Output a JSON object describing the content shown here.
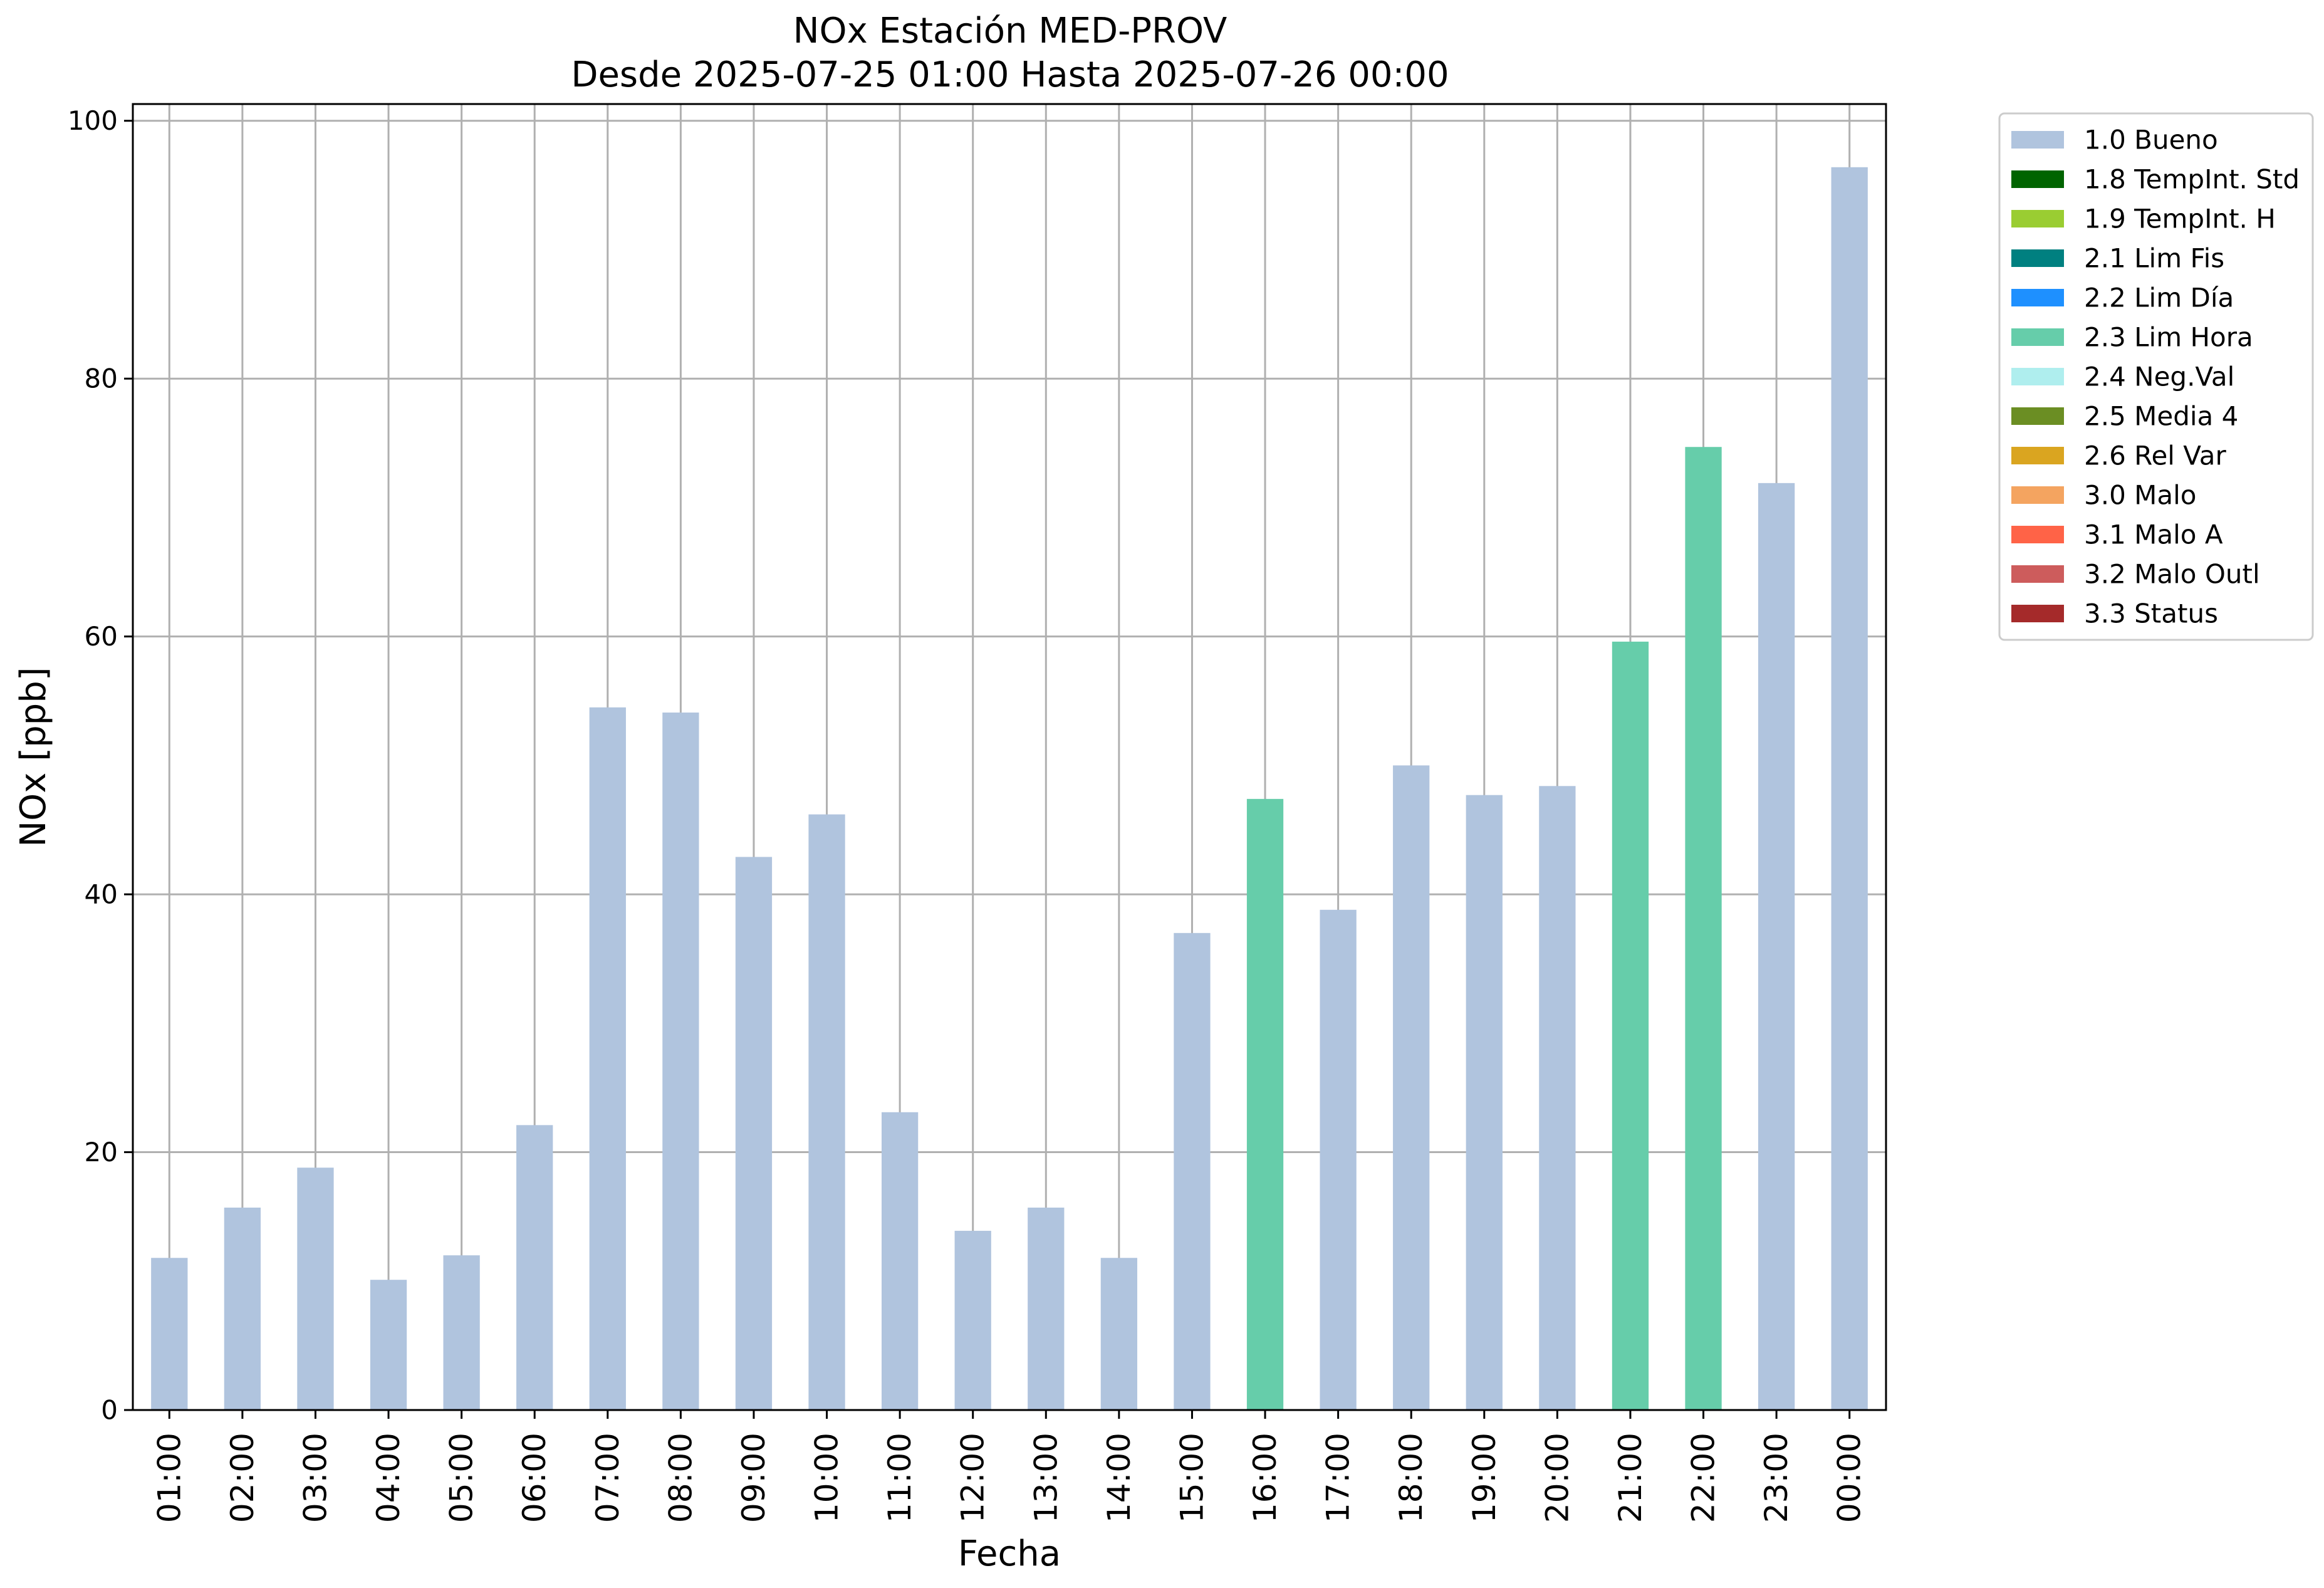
{
  "chart_data": {
    "type": "bar",
    "title": "NOx Estación MED-PROV",
    "subtitle": "Desde 2025-07-25 01:00 Hasta 2025-07-26 00:00",
    "xlabel": "Fecha",
    "ylabel": "NOx [ppb]",
    "ylim": [
      0,
      101.3
    ],
    "yticks": [
      0,
      20,
      40,
      60,
      80,
      100
    ],
    "grid": true,
    "legend_position": "outside-top-right",
    "categories": [
      "01:00",
      "02:00",
      "03:00",
      "04:00",
      "05:00",
      "06:00",
      "07:00",
      "08:00",
      "09:00",
      "10:00",
      "11:00",
      "12:00",
      "13:00",
      "14:00",
      "15:00",
      "16:00",
      "17:00",
      "18:00",
      "19:00",
      "20:00",
      "21:00",
      "22:00",
      "23:00",
      "00:00"
    ],
    "values": [
      11.8,
      15.7,
      18.8,
      10.1,
      12.0,
      22.1,
      54.5,
      54.1,
      42.9,
      46.2,
      23.1,
      13.9,
      15.7,
      11.8,
      37.0,
      47.4,
      38.8,
      50.0,
      47.7,
      48.4,
      59.6,
      74.7,
      71.9,
      96.4
    ],
    "flags": [
      "1.0 Bueno",
      "1.0 Bueno",
      "1.0 Bueno",
      "1.0 Bueno",
      "1.0 Bueno",
      "1.0 Bueno",
      "1.0 Bueno",
      "1.0 Bueno",
      "1.0 Bueno",
      "1.0 Bueno",
      "1.0 Bueno",
      "1.0 Bueno",
      "1.0 Bueno",
      "1.0 Bueno",
      "1.0 Bueno",
      "2.3 Lim Hora",
      "1.0 Bueno",
      "1.0 Bueno",
      "1.0 Bueno",
      "1.0 Bueno",
      "2.3 Lim Hora",
      "2.3 Lim Hora",
      "1.0 Bueno",
      "1.0 Bueno"
    ],
    "legend": [
      {
        "label": "1.0 Bueno",
        "color": "#b0c4de"
      },
      {
        "label": "1.8 TempInt. Std",
        "color": "#006400"
      },
      {
        "label": "1.9 TempInt. H",
        "color": "#9acd32"
      },
      {
        "label": "2.1 Lim Fis",
        "color": "#008080"
      },
      {
        "label": "2.2 Lim Día",
        "color": "#1e90ff"
      },
      {
        "label": "2.3 Lim Hora",
        "color": "#66cdaa"
      },
      {
        "label": "2.4 Neg.Val",
        "color": "#afeeee"
      },
      {
        "label": "2.5 Media 4",
        "color": "#6b8e23"
      },
      {
        "label": "2.6 Rel Var",
        "color": "#daa520"
      },
      {
        "label": "3.0 Malo",
        "color": "#f4a460"
      },
      {
        "label": "3.1 Malo A",
        "color": "#ff6347"
      },
      {
        "label": "3.2 Malo Outl",
        "color": "#cd5c5c"
      },
      {
        "label": "3.3 Status",
        "color": "#a52a2a"
      }
    ]
  }
}
